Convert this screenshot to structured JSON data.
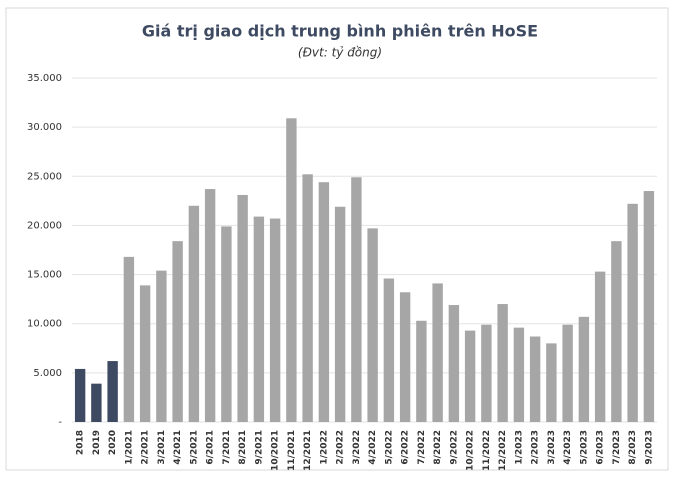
{
  "chart_data": {
    "type": "bar",
    "title": "Giá trị giao dịch trung bình phiên trên HoSE",
    "subtitle": "(Đvt: tỷ đồng)",
    "categories": [
      "2018",
      "2019",
      "2020",
      "1/2021",
      "2/2021",
      "3/2021",
      "4/2021",
      "5/2021",
      "6/2021",
      "7/2021",
      "8/2021",
      "9/2021",
      "10/2021",
      "11/2021",
      "12/2021",
      "1/2022",
      "2/2022",
      "3/2022",
      "4/2022",
      "5/2022",
      "6/2022",
      "7/2022",
      "8/2022",
      "9/2022",
      "10/2022",
      "11/2022",
      "12/2022",
      "1/2023",
      "2/2023",
      "3/2023",
      "4/2023",
      "5/2023",
      "6/2023",
      "7/2023",
      "8/2023",
      "9/2023"
    ],
    "values": [
      5400,
      3900,
      6200,
      16800,
      13900,
      15400,
      18400,
      22000,
      23700,
      19900,
      23100,
      20900,
      20700,
      30900,
      25200,
      24400,
      21900,
      24900,
      19700,
      14600,
      13200,
      10300,
      14100,
      11900,
      9300,
      9900,
      12000,
      9600,
      8700,
      8000,
      9900,
      10700,
      15300,
      18400,
      22200,
      23500
    ],
    "colors": [
      "#3e4a61",
      "#3e4a61",
      "#3e4a61",
      "#a6a6a6",
      "#a6a6a6",
      "#a6a6a6",
      "#a6a6a6",
      "#a6a6a6",
      "#a6a6a6",
      "#a6a6a6",
      "#a6a6a6",
      "#a6a6a6",
      "#a6a6a6",
      "#a6a6a6",
      "#a6a6a6",
      "#a6a6a6",
      "#a6a6a6",
      "#a6a6a6",
      "#a6a6a6",
      "#a6a6a6",
      "#a6a6a6",
      "#a6a6a6",
      "#a6a6a6",
      "#a6a6a6",
      "#a6a6a6",
      "#a6a6a6",
      "#a6a6a6",
      "#a6a6a6",
      "#a6a6a6",
      "#a6a6a6",
      "#a6a6a6",
      "#a6a6a6",
      "#a6a6a6",
      "#a6a6a6",
      "#a6a6a6",
      "#a6a6a6"
    ],
    "ylim": [
      0,
      35000
    ],
    "yticks": [
      {
        "value": 0,
        "label": "-"
      },
      {
        "value": 5000,
        "label": "5.000"
      },
      {
        "value": 10000,
        "label": "10.000"
      },
      {
        "value": 15000,
        "label": "15.000"
      },
      {
        "value": 20000,
        "label": "20.000"
      },
      {
        "value": 25000,
        "label": "25.000"
      },
      {
        "value": 30000,
        "label": "30.000"
      },
      {
        "value": 35000,
        "label": "35.000"
      }
    ],
    "grid": true
  }
}
